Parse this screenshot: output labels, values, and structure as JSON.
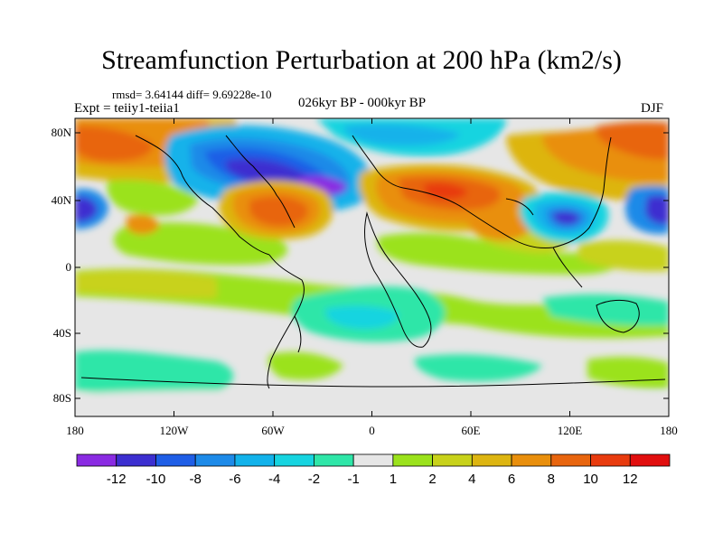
{
  "title": "Streamfunction Perturbation at 200 hPa (km2/s)",
  "stats": "rmsd= 3.64144 diff= 9.69228e-10",
  "experiment": "Expt = teiiy1-teiia1",
  "period": "026kyr BP - 000kyr BP",
  "season": "DJF",
  "lat_labels": [
    "80N",
    "40N",
    "0",
    "40S",
    "80S"
  ],
  "lon_labels": [
    "180",
    "120W",
    "60W",
    "0",
    "60E",
    "120E",
    "180"
  ],
  "colorbar": {
    "labels": [
      "-12",
      "-10",
      "-8",
      "-6",
      "-4",
      "-2",
      "-1",
      "1",
      "2",
      "4",
      "6",
      "8",
      "10",
      "12"
    ],
    "colors": [
      "#8a2be2",
      "#3c2fd0",
      "#1f5ee6",
      "#1d8ae8",
      "#12b2ea",
      "#16d4e0",
      "#2fe6a8",
      "#e6e6e6",
      "#9be21c",
      "#c8d21a",
      "#ddb511",
      "#e98f0c",
      "#e8650e",
      "#e83b0e",
      "#e10e0e"
    ]
  }
}
